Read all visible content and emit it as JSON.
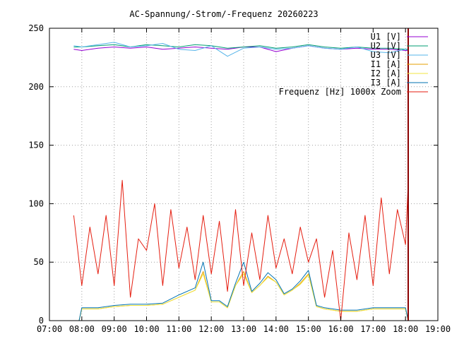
{
  "chart_data": {
    "type": "line",
    "title": "AC-Spannung/-Strom/-Frequenz 20260223",
    "xlabel": "",
    "ylabel": "",
    "xlim": [
      "07:00",
      "19:00"
    ],
    "ylim": [
      0,
      250
    ],
    "x_ticks": [
      "07:00",
      "08:00",
      "09:00",
      "10:00",
      "11:00",
      "12:00",
      "13:00",
      "14:00",
      "15:00",
      "16:00",
      "17:00",
      "18:00",
      "19:00"
    ],
    "y_ticks": [
      0,
      50,
      100,
      150,
      200,
      250
    ],
    "grid": true,
    "legend_position": "top-right",
    "vertical_marker": {
      "x": "18:05",
      "color": "#8b0000"
    },
    "series": [
      {
        "name": "U1 [V]",
        "color": "#9400d3",
        "x": [
          "07:45",
          "08:00",
          "08:30",
          "09:00",
          "09:30",
          "10:00",
          "10:30",
          "11:00",
          "11:30",
          "12:00",
          "12:30",
          "13:00",
          "13:30",
          "14:00",
          "14:30",
          "15:00",
          "15:30",
          "16:00",
          "16:30",
          "17:00",
          "17:30",
          "18:00",
          "18:05"
        ],
        "y": [
          232,
          231,
          233,
          234,
          233,
          234,
          232,
          233,
          234,
          233,
          232,
          234,
          234,
          230,
          233,
          235,
          233,
          232,
          233,
          232,
          232,
          231,
          231
        ]
      },
      {
        "name": "U2 [V]",
        "color": "#009e73",
        "x": [
          "07:45",
          "08:00",
          "08:30",
          "09:00",
          "09:30",
          "10:00",
          "10:30",
          "11:00",
          "11:30",
          "12:00",
          "12:30",
          "13:00",
          "13:30",
          "14:00",
          "14:30",
          "15:00",
          "15:30",
          "16:00",
          "16:30",
          "17:00",
          "17:30",
          "18:00",
          "18:05"
        ],
        "y": [
          234,
          234,
          235,
          236,
          234,
          236,
          235,
          234,
          236,
          235,
          233,
          234,
          235,
          233,
          234,
          236,
          234,
          233,
          234,
          233,
          233,
          232,
          232
        ]
      },
      {
        "name": "U3 [V]",
        "color": "#56b4e9",
        "x": [
          "07:45",
          "08:00",
          "08:30",
          "09:00",
          "09:30",
          "10:00",
          "10:30",
          "11:00",
          "11:30",
          "12:00",
          "12:30",
          "13:00",
          "13:30",
          "14:00",
          "14:30",
          "15:00",
          "15:30",
          "16:00",
          "16:30",
          "17:00",
          "17:30",
          "18:00",
          "18:05"
        ],
        "y": [
          235,
          234,
          236,
          238,
          234,
          235,
          237,
          232,
          231,
          235,
          226,
          233,
          234,
          232,
          233,
          235,
          233,
          232,
          234,
          230,
          229,
          232,
          231
        ]
      },
      {
        "name": "I1 [A]",
        "color": "#e69f00",
        "x": [
          "07:45",
          "07:55",
          "08:00",
          "08:30",
          "09:00",
          "09:30",
          "10:00",
          "10:30",
          "11:00",
          "11:30",
          "11:45",
          "12:00",
          "12:15",
          "12:30",
          "12:45",
          "13:00",
          "13:15",
          "13:30",
          "13:45",
          "14:00",
          "14:15",
          "14:30",
          "14:45",
          "15:00",
          "15:15",
          "15:30",
          "15:45",
          "16:00",
          "16:30",
          "17:00",
          "17:30",
          "18:00",
          "18:05"
        ],
        "y": [
          0,
          0,
          10,
          10,
          12,
          13,
          13,
          14,
          20,
          26,
          42,
          16,
          16,
          11,
          30,
          42,
          24,
          30,
          38,
          33,
          22,
          26,
          32,
          40,
          12,
          10,
          9,
          8,
          8,
          10,
          10,
          10,
          0
        ]
      },
      {
        "name": "I2 [A]",
        "color": "#f0e442",
        "x": [
          "07:45",
          "07:55",
          "08:00",
          "08:30",
          "09:00",
          "09:30",
          "10:00",
          "10:30",
          "11:00",
          "11:30",
          "11:45",
          "12:00",
          "12:15",
          "12:30",
          "12:45",
          "13:00",
          "13:15",
          "13:30",
          "13:45",
          "14:00",
          "14:15",
          "14:30",
          "14:45",
          "15:00",
          "15:15",
          "15:30",
          "15:45",
          "16:00",
          "16:30",
          "17:00",
          "17:30",
          "18:00",
          "18:05"
        ],
        "y": [
          0,
          0,
          10,
          10,
          12,
          13,
          13,
          14,
          20,
          26,
          40,
          16,
          16,
          11,
          30,
          40,
          24,
          30,
          37,
          33,
          22,
          26,
          31,
          39,
          12,
          10,
          9,
          8,
          8,
          10,
          10,
          10,
          0
        ]
      },
      {
        "name": "I3 [A]",
        "color": "#0072b2",
        "x": [
          "07:45",
          "07:55",
          "08:00",
          "08:30",
          "09:00",
          "09:30",
          "10:00",
          "10:30",
          "11:00",
          "11:30",
          "11:45",
          "12:00",
          "12:15",
          "12:30",
          "12:45",
          "13:00",
          "13:15",
          "13:30",
          "13:45",
          "14:00",
          "14:15",
          "14:30",
          "14:45",
          "15:00",
          "15:15",
          "15:30",
          "15:45",
          "16:00",
          "16:30",
          "17:00",
          "17:30",
          "18:00",
          "18:05"
        ],
        "y": [
          0,
          0,
          11,
          11,
          13,
          14,
          14,
          15,
          22,
          28,
          50,
          17,
          17,
          12,
          32,
          50,
          25,
          32,
          41,
          35,
          23,
          27,
          34,
          43,
          13,
          11,
          10,
          9,
          9,
          11,
          11,
          11,
          0
        ]
      },
      {
        "name": "Frequenz [Hz] 1000x Zoom",
        "color": "#e51e10",
        "x": [
          "07:45",
          "08:00",
          "08:15",
          "08:30",
          "08:45",
          "09:00",
          "09:15",
          "09:30",
          "09:45",
          "10:00",
          "10:15",
          "10:30",
          "10:45",
          "11:00",
          "11:15",
          "11:30",
          "11:45",
          "12:00",
          "12:15",
          "12:30",
          "12:45",
          "13:00",
          "13:15",
          "13:30",
          "13:45",
          "14:00",
          "14:15",
          "14:30",
          "14:45",
          "15:00",
          "15:15",
          "15:30",
          "15:45",
          "16:00",
          "16:15",
          "16:30",
          "16:45",
          "17:00",
          "17:15",
          "17:30",
          "17:45",
          "18:00",
          "18:05"
        ],
        "y": [
          90,
          30,
          80,
          40,
          90,
          30,
          120,
          20,
          70,
          60,
          100,
          30,
          95,
          45,
          80,
          35,
          90,
          40,
          85,
          25,
          95,
          30,
          75,
          35,
          90,
          45,
          70,
          40,
          80,
          50,
          70,
          20,
          60,
          0,
          75,
          35,
          90,
          30,
          105,
          40,
          95,
          65,
          118
        ]
      }
    ]
  }
}
